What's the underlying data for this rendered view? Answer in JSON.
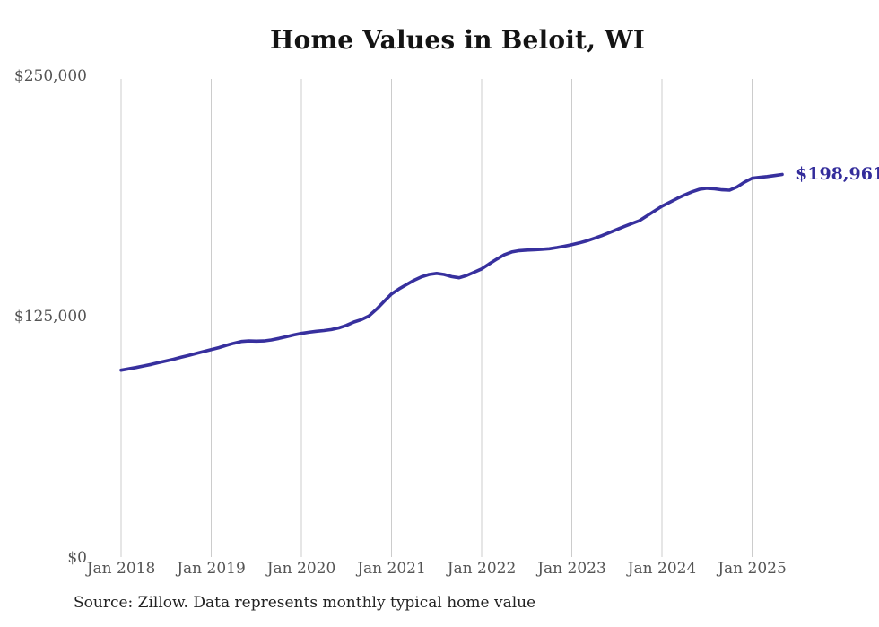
{
  "chart": {
    "title": "Home Values in Beloit, WI",
    "end_label": "$198,961",
    "source_note": "Source: Zillow. Data represents monthly typical home value"
  },
  "chart_data": {
    "type": "line",
    "title": "Home Values in Beloit, WI",
    "series_name": "Monthly typical home value",
    "x_start_month": "Jan 2018",
    "x_end_month": "May 2025",
    "x_tick_labels": [
      "Jan 2018",
      "Jan 2019",
      "Jan 2020",
      "Jan 2021",
      "Jan 2022",
      "Jan 2023",
      "Jan 2024",
      "Jan 2025"
    ],
    "y_ticks": [
      {
        "label": "$0",
        "value": 0
      },
      {
        "label": "$125,000",
        "value": 125000
      },
      {
        "label": "$250,000",
        "value": 250000
      }
    ],
    "ylim": [
      0,
      250000
    ],
    "grid": "vertical-only",
    "legend": "none",
    "line_color": "#37309e",
    "grid_color": "#cccccc",
    "tick_label_color": "#545454",
    "latest_value": 198961,
    "values": [
      97300,
      98000,
      98700,
      99500,
      100300,
      101200,
      102100,
      103000,
      104000,
      105000,
      106000,
      107000,
      108000,
      109000,
      110200,
      111300,
      112200,
      112500,
      112400,
      112500,
      113000,
      113800,
      114700,
      115600,
      116400,
      117000,
      117500,
      117900,
      118400,
      119300,
      120600,
      122300,
      123600,
      125500,
      129000,
      133000,
      136900,
      139500,
      141800,
      144000,
      145800,
      147000,
      147600,
      147000,
      145900,
      145300,
      146500,
      148200,
      149900,
      152500,
      155000,
      157200,
      158700,
      159400,
      159700,
      159900,
      160100,
      160400,
      161000,
      161700,
      162500,
      163400,
      164500,
      165800,
      167200,
      168800,
      170400,
      172000,
      173500,
      175000,
      177500,
      180000,
      182500,
      184500,
      186500,
      188300,
      190000,
      191300,
      191800,
      191500,
      191000,
      190800,
      192500,
      195000,
      197000,
      197500,
      197900,
      198400,
      198961
    ]
  }
}
